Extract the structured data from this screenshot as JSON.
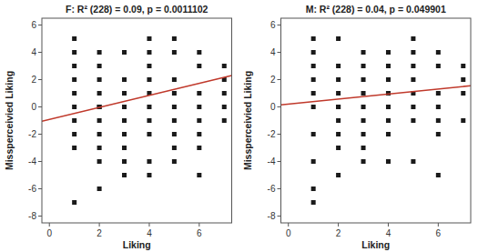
{
  "chart_data": [
    {
      "type": "scatter",
      "title": "F: R² (228) = 0.09, p = 0.0011102",
      "xlabel": "Liking",
      "ylabel": "Missperceivied Liking",
      "xlim": [
        -0.3,
        7.3
      ],
      "ylim": [
        -8.5,
        6.5
      ],
      "xticks": [
        0,
        2,
        4,
        6
      ],
      "yticks": [
        -8,
        -6,
        -4,
        -2,
        0,
        2,
        4,
        6
      ],
      "grid": false,
      "series": [
        {
          "type": "scatter",
          "color": "#1a1a1a",
          "marker": "square",
          "x": [
            1,
            1,
            1,
            1,
            1,
            1,
            1,
            1,
            1,
            1,
            2,
            2,
            2,
            2,
            2,
            2,
            2,
            2,
            2,
            2,
            2,
            3,
            3,
            3,
            3,
            3,
            3,
            3,
            3,
            3,
            4,
            4,
            4,
            4,
            4,
            4,
            4,
            4,
            4,
            4,
            5,
            5,
            5,
            5,
            5,
            5,
            5,
            5,
            5,
            6,
            6,
            6,
            6,
            6,
            6,
            6,
            6,
            7,
            7,
            7,
            7,
            7
          ],
          "values": [
            5,
            4,
            3,
            2,
            1,
            0,
            -1,
            -2,
            -3,
            -7,
            4,
            3,
            2,
            1,
            0,
            0,
            -1,
            -2,
            -3,
            -4,
            -6,
            4,
            2,
            1,
            0,
            -1,
            -2,
            -3,
            -4,
            -5,
            5,
            4,
            3,
            2,
            1,
            0,
            -1,
            -2,
            -4,
            -5,
            5,
            4,
            2,
            1,
            0,
            -1,
            -2,
            -3,
            -4,
            4,
            3,
            1,
            0,
            -1,
            -2,
            -3,
            -5,
            3,
            2,
            1,
            0,
            -1
          ]
        },
        {
          "type": "line",
          "color": "#c0392b",
          "line_style": "solid",
          "x": [
            -0.3,
            7.3
          ],
          "values": [
            -1.05,
            2.3
          ]
        }
      ]
    },
    {
      "type": "scatter",
      "title": "M: R² (228) = 0.04, p = 0.049901",
      "xlabel": "Liking",
      "ylabel": "Missperceivied Liking",
      "xlim": [
        -0.3,
        7.3
      ],
      "ylim": [
        -8.5,
        6.5
      ],
      "xticks": [
        0,
        2,
        4,
        6
      ],
      "yticks": [
        -8,
        -6,
        -4,
        -2,
        0,
        2,
        4,
        6
      ],
      "grid": false,
      "series": [
        {
          "type": "scatter",
          "color": "#1a1a1a",
          "marker": "square",
          "x": [
            1,
            1,
            1,
            1,
            1,
            1,
            1,
            1,
            1,
            1,
            2,
            2,
            2,
            2,
            2,
            2,
            2,
            2,
            2,
            2,
            3,
            3,
            3,
            3,
            3,
            3,
            3,
            3,
            3,
            4,
            4,
            4,
            4,
            4,
            4,
            4,
            4,
            4,
            5,
            5,
            5,
            5,
            5,
            5,
            5,
            5,
            6,
            6,
            6,
            6,
            6,
            6,
            6,
            7,
            7,
            7,
            7
          ],
          "values": [
            5,
            4,
            3,
            2,
            1,
            0,
            -2,
            -4,
            -6,
            -7,
            5,
            3,
            2,
            1,
            0,
            0,
            -1,
            -2,
            -3,
            -5,
            4,
            3,
            2,
            1,
            0,
            -1,
            -2,
            -3,
            -4,
            4,
            3,
            2,
            1,
            1,
            0,
            -1,
            -2,
            -4,
            5,
            4,
            3,
            2,
            1,
            0,
            -1,
            -4,
            4,
            3,
            1,
            0,
            -1,
            -2,
            -5,
            3,
            2,
            1,
            -1
          ]
        },
        {
          "type": "line",
          "color": "#c0392b",
          "line_style": "solid",
          "x": [
            -0.3,
            7.3
          ],
          "values": [
            0.15,
            1.55
          ]
        }
      ]
    }
  ]
}
